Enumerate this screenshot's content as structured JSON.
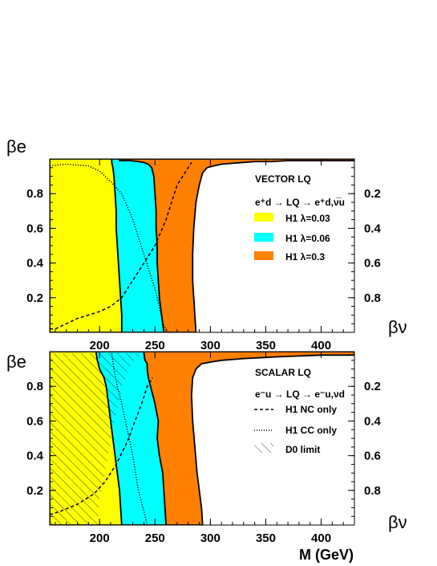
{
  "chart_data": [
    {
      "type": "area",
      "title": "VECTOR LQ",
      "process": "e⁺d → LQ → e⁺d,ν̅u",
      "ylabel": "βe",
      "y2label": "βν",
      "xlim": [
        155,
        430
      ],
      "ylim": [
        0,
        1
      ],
      "x_ticks": [
        "200",
        "250",
        "300",
        "350",
        "400"
      ],
      "y_ticks": [
        "0.2",
        "0.4",
        "0.6",
        "0.8"
      ],
      "y2_ticks": [
        "0.8",
        "0.6",
        "0.4",
        "0.2"
      ],
      "legend_position": "top-right",
      "colors": {
        "yellow": "#ffff00",
        "cyan": "#00ffff",
        "orange": "#ff7f00"
      },
      "series": [
        {
          "name": "H1 λ=0.3",
          "color": "#ff7f00",
          "x": [
            287,
            286,
            285,
            284,
            284,
            285,
            287,
            290,
            293,
            297,
            303,
            310,
            320,
            330,
            340,
            355,
            370,
            385,
            400,
            415,
            430
          ],
          "y": [
            0,
            0.1,
            0.2,
            0.3,
            0.45,
            0.6,
            0.75,
            0.85,
            0.92,
            0.95,
            0.96,
            0.97,
            0.975,
            0.98,
            0.985,
            0.985,
            0.99,
            0.99,
            0.99,
            0.99,
            0.99
          ]
        },
        {
          "name": "H1 λ=0.06",
          "color": "#00ffff",
          "x": [
            258,
            256,
            254,
            253,
            252,
            252,
            251,
            251,
            250,
            249,
            247,
            244,
            240,
            235,
            228,
            226,
            224,
            222,
            220,
            218
          ],
          "y": [
            0,
            0.1,
            0.2,
            0.3,
            0.4,
            0.5,
            0.6,
            0.7,
            0.8,
            0.9,
            0.95,
            0.97,
            0.98,
            0.985,
            0.99,
            0.99,
            0.99,
            0.99,
            0.99,
            0.99
          ]
        },
        {
          "name": "H1 λ=0.03",
          "color": "#ffff00",
          "x": [
            220,
            220,
            219,
            218,
            217,
            216,
            215,
            215,
            214,
            213,
            212,
            211
          ],
          "y": [
            0,
            0.1,
            0.2,
            0.3,
            0.4,
            0.5,
            0.6,
            0.7,
            0.8,
            0.9,
            0.95,
            0.98
          ]
        }
      ],
      "nc_curve": {
        "x": [
          155,
          160,
          170,
          180,
          190,
          200,
          210,
          220,
          230,
          240,
          250,
          260,
          270,
          283
        ],
        "y": [
          0.02,
          0.02,
          0.05,
          0.08,
          0.1,
          0.12,
          0.15,
          0.2,
          0.3,
          0.4,
          0.5,
          0.65,
          0.85,
          0.98
        ]
      },
      "cc_curve": {
        "x": [
          155,
          170,
          190,
          200,
          210,
          220,
          230,
          240,
          250,
          254,
          257,
          262
        ],
        "y": [
          0.96,
          0.97,
          0.96,
          0.93,
          0.87,
          0.8,
          0.65,
          0.45,
          0.25,
          0.15,
          0.05,
          0
        ]
      },
      "d0_limit": null
    },
    {
      "type": "area",
      "title": "SCALAR LQ",
      "process": "e⁻u → LQ → e⁻u,νd",
      "ylabel": "βe",
      "y2label": "βν",
      "xlabel": "M (GeV)",
      "xlim": [
        155,
        430
      ],
      "ylim": [
        0,
        1
      ],
      "x_ticks": [
        "200",
        "250",
        "300",
        "350",
        "400"
      ],
      "y_ticks": [
        "0.2",
        "0.4",
        "0.6",
        "0.8"
      ],
      "y2_ticks": [
        "0.8",
        "0.6",
        "0.4",
        "0.2"
      ],
      "legend_position": "top-right",
      "legend": [
        "H1 NC only",
        "H1 CC only",
        "D0 limit"
      ],
      "series": [
        {
          "name": "orange",
          "color": "#ff7f00",
          "x": [
            293,
            292,
            290,
            288,
            286,
            284,
            283,
            284,
            287,
            292,
            300,
            310,
            320,
            330,
            345,
            360,
            380,
            400,
            420,
            430
          ],
          "y": [
            0,
            0.1,
            0.2,
            0.3,
            0.45,
            0.6,
            0.75,
            0.85,
            0.9,
            0.93,
            0.94,
            0.95,
            0.955,
            0.96,
            0.965,
            0.97,
            0.975,
            0.98,
            0.98,
            0.98
          ]
        },
        {
          "name": "cyan",
          "color": "#00ffff",
          "x": [
            260,
            259,
            258,
            257,
            254,
            252,
            253,
            250,
            246,
            244,
            243,
            243,
            241,
            240
          ],
          "y": [
            0,
            0.1,
            0.2,
            0.3,
            0.4,
            0.5,
            0.6,
            0.7,
            0.8,
            0.85,
            0.9,
            0.93,
            0.95,
            0.99
          ]
        },
        {
          "name": "yellow",
          "color": "#ffff00",
          "x": [
            220,
            219,
            218,
            216,
            214,
            212,
            210,
            208,
            206,
            204,
            200,
            198,
            197
          ],
          "y": [
            0,
            0.1,
            0.2,
            0.3,
            0.4,
            0.5,
            0.6,
            0.7,
            0.8,
            0.85,
            0.9,
            0.95,
            0.99
          ]
        }
      ],
      "nc_curve": {
        "x": [
          155,
          165,
          180,
          195,
          205,
          215,
          225,
          232,
          238,
          243,
          248
        ],
        "y": [
          0.06,
          0.08,
          0.12,
          0.18,
          0.25,
          0.35,
          0.48,
          0.6,
          0.7,
          0.8,
          0.85
        ]
      },
      "cc_curve": {
        "x": [
          211,
          213,
          216,
          220,
          225,
          230,
          235,
          240,
          243
        ],
        "y": [
          0.99,
          0.9,
          0.8,
          0.7,
          0.55,
          0.4,
          0.2,
          0.08,
          0
        ]
      },
      "d0_limit": {
        "x": [
          155,
          198,
          200,
          205,
          209,
          212,
          215,
          217,
          220,
          224,
          226,
          231,
          240,
          247,
          260,
          155
        ],
        "y": [
          0,
          0,
          0.15,
          0.3,
          0.45,
          0.55,
          0.65,
          0.7,
          0.8,
          0.85,
          0.9,
          0.95,
          0.99,
          0.99,
          0.99,
          0.99
        ]
      }
    }
  ],
  "panel_labels": {
    "top_y": "βe",
    "top_y2": "βν",
    "bottom_y": "βe",
    "bottom_y2": "βν",
    "x": "M (GeV)"
  },
  "top_legend": {
    "title": "VECTOR LQ",
    "process": "e⁺d → LQ → e⁺d,ν̅u",
    "items": [
      "H1 λ=0.03",
      "H1 λ=0.06",
      "H1 λ=0.3"
    ]
  },
  "bottom_legend": {
    "title": "SCALAR LQ",
    "process": "e⁻u → LQ → e⁻u,νd",
    "items": [
      "H1 NC only",
      "H1 CC only",
      "D0 limit"
    ]
  }
}
